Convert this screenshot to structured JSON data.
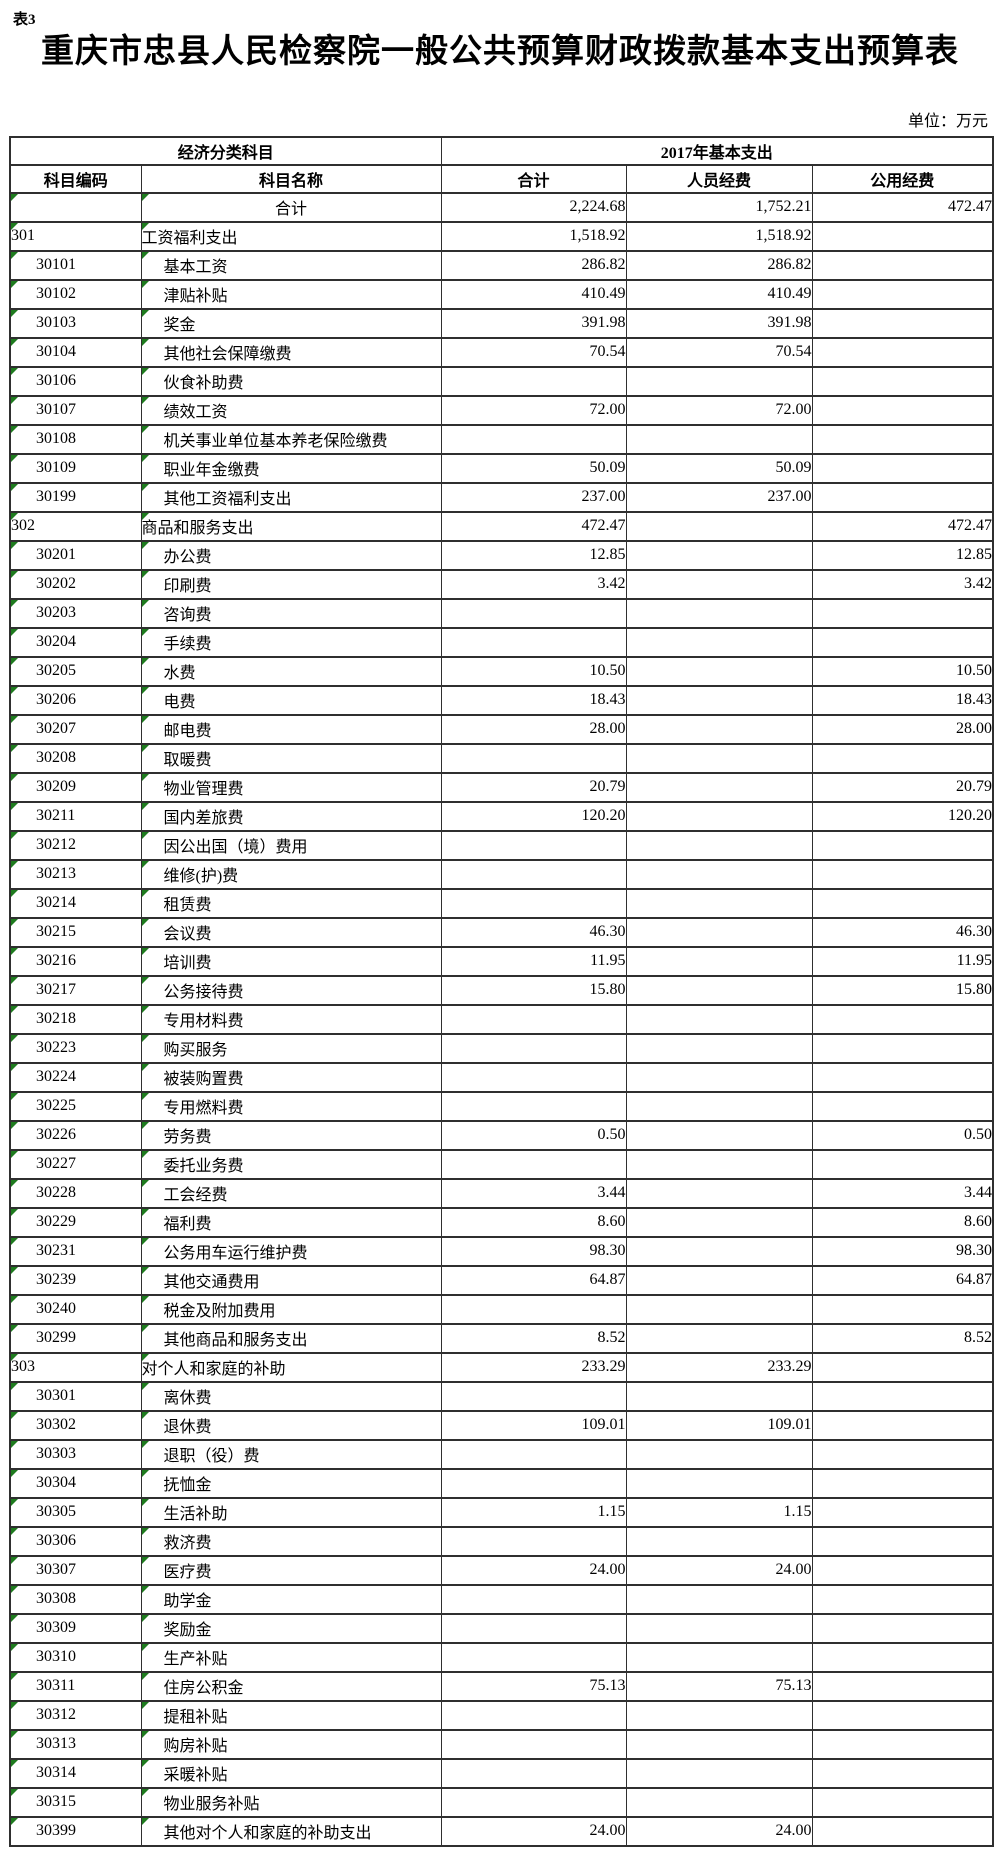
{
  "page": {
    "tag": "表3",
    "title": "重庆市忠县人民检察院一般公共预算财政拨款基本支出预算表",
    "unit_label": "单位：万元"
  },
  "colors": {
    "text": "#000000",
    "background": "#FFFFFF",
    "table_border": "#2F2F2F",
    "cell_marker_green": "#1E7B1E"
  },
  "table": {
    "header": {
      "group_economic": "经济分类科目",
      "group_2017": "2017年基本支出",
      "col_code": "科目编码",
      "col_name": "科目名称",
      "col_total": "合计",
      "col_personnel": "人员经费",
      "col_public": "公用经费"
    },
    "rows": [
      {
        "code": "",
        "name": "合计",
        "total": "2,224.68",
        "personnel": "1,752.21",
        "public": "472.47",
        "level": 0
      },
      {
        "code": "301",
        "name": "工资福利支出",
        "total": "1,518.92",
        "personnel": "1,518.92",
        "public": "",
        "level": 1
      },
      {
        "code": "30101",
        "name": "基本工资",
        "total": "286.82",
        "personnel": "286.82",
        "public": "",
        "level": 2
      },
      {
        "code": "30102",
        "name": "津贴补贴",
        "total": "410.49",
        "personnel": "410.49",
        "public": "",
        "level": 2
      },
      {
        "code": "30103",
        "name": "奖金",
        "total": "391.98",
        "personnel": "391.98",
        "public": "",
        "level": 2
      },
      {
        "code": "30104",
        "name": "其他社会保障缴费",
        "total": "70.54",
        "personnel": "70.54",
        "public": "",
        "level": 2
      },
      {
        "code": "30106",
        "name": "伙食补助费",
        "total": "",
        "personnel": "",
        "public": "",
        "level": 2
      },
      {
        "code": "30107",
        "name": "绩效工资",
        "total": "72.00",
        "personnel": "72.00",
        "public": "",
        "level": 2
      },
      {
        "code": "30108",
        "name": "机关事业单位基本养老保险缴费",
        "total": "",
        "personnel": "",
        "public": "",
        "level": 2
      },
      {
        "code": "30109",
        "name": "职业年金缴费",
        "total": "50.09",
        "personnel": "50.09",
        "public": "",
        "level": 2
      },
      {
        "code": "30199",
        "name": "其他工资福利支出",
        "total": "237.00",
        "personnel": "237.00",
        "public": "",
        "level": 2
      },
      {
        "code": "302",
        "name": "商品和服务支出",
        "total": "472.47",
        "personnel": "",
        "public": "472.47",
        "level": 1
      },
      {
        "code": "30201",
        "name": "办公费",
        "total": "12.85",
        "personnel": "",
        "public": "12.85",
        "level": 2
      },
      {
        "code": "30202",
        "name": "印刷费",
        "total": "3.42",
        "personnel": "",
        "public": "3.42",
        "level": 2
      },
      {
        "code": "30203",
        "name": "咨询费",
        "total": "",
        "personnel": "",
        "public": "",
        "level": 2
      },
      {
        "code": "30204",
        "name": "手续费",
        "total": "",
        "personnel": "",
        "public": "",
        "level": 2
      },
      {
        "code": "30205",
        "name": "水费",
        "total": "10.50",
        "personnel": "",
        "public": "10.50",
        "level": 2
      },
      {
        "code": "30206",
        "name": "电费",
        "total": "18.43",
        "personnel": "",
        "public": "18.43",
        "level": 2
      },
      {
        "code": "30207",
        "name": "邮电费",
        "total": "28.00",
        "personnel": "",
        "public": "28.00",
        "level": 2
      },
      {
        "code": "30208",
        "name": "取暖费",
        "total": "",
        "personnel": "",
        "public": "",
        "level": 2
      },
      {
        "code": "30209",
        "name": "物业管理费",
        "total": "20.79",
        "personnel": "",
        "public": "20.79",
        "level": 2
      },
      {
        "code": "30211",
        "name": "国内差旅费",
        "total": "120.20",
        "personnel": "",
        "public": "120.20",
        "level": 2
      },
      {
        "code": "30212",
        "name": "因公出国（境）费用",
        "total": "",
        "personnel": "",
        "public": "",
        "level": 2
      },
      {
        "code": "30213",
        "name": "维修(护)费",
        "total": "",
        "personnel": "",
        "public": "",
        "level": 2
      },
      {
        "code": "30214",
        "name": "租赁费",
        "total": "",
        "personnel": "",
        "public": "",
        "level": 2
      },
      {
        "code": "30215",
        "name": "会议费",
        "total": "46.30",
        "personnel": "",
        "public": "46.30",
        "level": 2
      },
      {
        "code": "30216",
        "name": "培训费",
        "total": "11.95",
        "personnel": "",
        "public": "11.95",
        "level": 2
      },
      {
        "code": "30217",
        "name": "公务接待费",
        "total": "15.80",
        "personnel": "",
        "public": "15.80",
        "level": 2
      },
      {
        "code": "30218",
        "name": "专用材料费",
        "total": "",
        "personnel": "",
        "public": "",
        "level": 2
      },
      {
        "code": "30223",
        "name": "购买服务",
        "total": "",
        "personnel": "",
        "public": "",
        "level": 2
      },
      {
        "code": "30224",
        "name": "被装购置费",
        "total": "",
        "personnel": "",
        "public": "",
        "level": 2
      },
      {
        "code": "30225",
        "name": "专用燃料费",
        "total": "",
        "personnel": "",
        "public": "",
        "level": 2
      },
      {
        "code": "30226",
        "name": "劳务费",
        "total": "0.50",
        "personnel": "",
        "public": "0.50",
        "level": 2
      },
      {
        "code": "30227",
        "name": "委托业务费",
        "total": "",
        "personnel": "",
        "public": "",
        "level": 2
      },
      {
        "code": "30228",
        "name": "工会经费",
        "total": "3.44",
        "personnel": "",
        "public": "3.44",
        "level": 2
      },
      {
        "code": "30229",
        "name": "福利费",
        "total": "8.60",
        "personnel": "",
        "public": "8.60",
        "level": 2
      },
      {
        "code": "30231",
        "name": "公务用车运行维护费",
        "total": "98.30",
        "personnel": "",
        "public": "98.30",
        "level": 2
      },
      {
        "code": "30239",
        "name": "其他交通费用",
        "total": "64.87",
        "personnel": "",
        "public": "64.87",
        "level": 2
      },
      {
        "code": "30240",
        "name": "税金及附加费用",
        "total": "",
        "personnel": "",
        "public": "",
        "level": 2
      },
      {
        "code": "30299",
        "name": "其他商品和服务支出",
        "total": "8.52",
        "personnel": "",
        "public": "8.52",
        "level": 2
      },
      {
        "code": "303",
        "name": "对个人和家庭的补助",
        "total": "233.29",
        "personnel": "233.29",
        "public": "",
        "level": 1
      },
      {
        "code": "30301",
        "name": "离休费",
        "total": "",
        "personnel": "",
        "public": "",
        "level": 2
      },
      {
        "code": "30302",
        "name": "退休费",
        "total": "109.01",
        "personnel": "109.01",
        "public": "",
        "level": 2
      },
      {
        "code": "30303",
        "name": "退职（役）费",
        "total": "",
        "personnel": "",
        "public": "",
        "level": 2
      },
      {
        "code": "30304",
        "name": "抚恤金",
        "total": "",
        "personnel": "",
        "public": "",
        "level": 2
      },
      {
        "code": "30305",
        "name": "生活补助",
        "total": "1.15",
        "personnel": "1.15",
        "public": "",
        "level": 2
      },
      {
        "code": "30306",
        "name": "救济费",
        "total": "",
        "personnel": "",
        "public": "",
        "level": 2
      },
      {
        "code": "30307",
        "name": "医疗费",
        "total": "24.00",
        "personnel": "24.00",
        "public": "",
        "level": 2
      },
      {
        "code": "30308",
        "name": "助学金",
        "total": "",
        "personnel": "",
        "public": "",
        "level": 2
      },
      {
        "code": "30309",
        "name": "奖励金",
        "total": "",
        "personnel": "",
        "public": "",
        "level": 2
      },
      {
        "code": "30310",
        "name": "生产补贴",
        "total": "",
        "personnel": "",
        "public": "",
        "level": 2
      },
      {
        "code": "30311",
        "name": "住房公积金",
        "total": "75.13",
        "personnel": "75.13",
        "public": "",
        "level": 2
      },
      {
        "code": "30312",
        "name": "提租补贴",
        "total": "",
        "personnel": "",
        "public": "",
        "level": 2
      },
      {
        "code": "30313",
        "name": "购房补贴",
        "total": "",
        "personnel": "",
        "public": "",
        "level": 2
      },
      {
        "code": "30314",
        "name": "采暖补贴",
        "total": "",
        "personnel": "",
        "public": "",
        "level": 2
      },
      {
        "code": "30315",
        "name": "物业服务补贴",
        "total": "",
        "personnel": "",
        "public": "",
        "level": 2
      },
      {
        "code": "30399",
        "name": "其他对个人和家庭的补助支出",
        "total": "24.00",
        "personnel": "24.00",
        "public": "",
        "level": 2
      }
    ]
  }
}
